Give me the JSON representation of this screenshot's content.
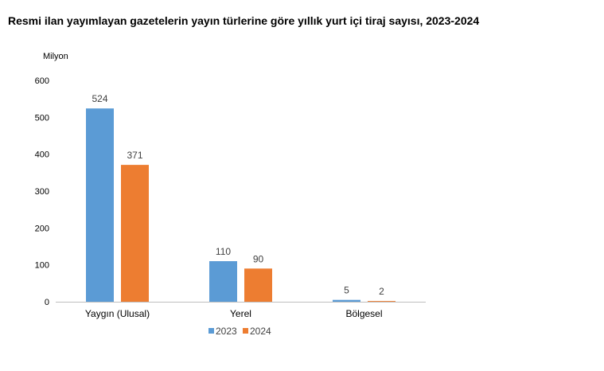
{
  "title": "Resmi ilan yayımlayan gazetelerin yayın türlerine göre yıllık yurt içi tiraj sayısı, 2023-2024",
  "chart_data": {
    "type": "bar",
    "title": "Resmi ilan yayımlayan gazetelerin yayın türlerine göre yıllık yurt içi tiraj sayısı, 2023-2024",
    "unit_label": "Milyon",
    "xlabel": "",
    "ylabel": "",
    "categories": [
      "Yaygın (Ulusal)",
      "Yerel",
      "Bölgesel"
    ],
    "series": [
      {
        "name": "2023",
        "values": [
          524,
          110,
          5
        ],
        "color": "#5B9BD5"
      },
      {
        "name": "2024",
        "values": [
          371,
          90,
          2
        ],
        "color": "#ED7D31"
      }
    ],
    "ylim": [
      0,
      600
    ],
    "yticks": [
      0,
      100,
      200,
      300,
      400,
      500,
      600
    ],
    "grid": false,
    "legend": "bottom-center",
    "data_labels": true
  }
}
